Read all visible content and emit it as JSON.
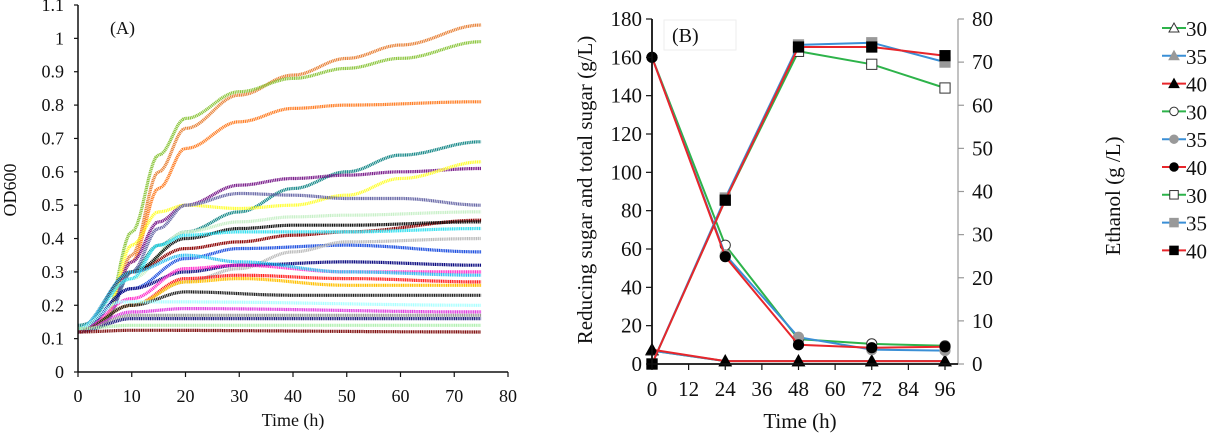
{
  "chart_data": [
    {
      "panel_label": "(A)",
      "type": "line",
      "xlabel": "Time (h)",
      "ylabel": "OD600",
      "xlim": [
        0,
        80
      ],
      "ylim": [
        0,
        1.1
      ],
      "xticks": [
        "0",
        "10",
        "20",
        "30",
        "40",
        "50",
        "60",
        "70",
        "80"
      ],
      "yticks": [
        "0",
        "0.1",
        "0.2",
        "0.3",
        "0.4",
        "0.5",
        "0.6",
        "0.7",
        "0.8",
        "0.9",
        "1",
        "1.1"
      ],
      "grid": false,
      "series": [
        {
          "color": "#e8843c",
          "points": [
            [
              0,
              0.13
            ],
            [
              5,
              0.15
            ],
            [
              10,
              0.35
            ],
            [
              15,
              0.6
            ],
            [
              20,
              0.73
            ],
            [
              30,
              0.83
            ],
            [
              40,
              0.89
            ],
            [
              50,
              0.94
            ],
            [
              60,
              0.98
            ],
            [
              75,
              1.04
            ]
          ]
        },
        {
          "color": "#8dc63f",
          "points": [
            [
              0,
              0.13
            ],
            [
              5,
              0.16
            ],
            [
              10,
              0.42
            ],
            [
              15,
              0.65
            ],
            [
              20,
              0.76
            ],
            [
              30,
              0.84
            ],
            [
              40,
              0.88
            ],
            [
              50,
              0.91
            ],
            [
              60,
              0.94
            ],
            [
              75,
              0.99
            ]
          ]
        },
        {
          "color": "#ff7f27",
          "points": [
            [
              0,
              0.13
            ],
            [
              5,
              0.15
            ],
            [
              10,
              0.33
            ],
            [
              15,
              0.55
            ],
            [
              20,
              0.67
            ],
            [
              30,
              0.75
            ],
            [
              40,
              0.79
            ],
            [
              50,
              0.8
            ],
            [
              75,
              0.81
            ]
          ]
        },
        {
          "color": "#1a8a8a",
          "points": [
            [
              0,
              0.14
            ],
            [
              5,
              0.16
            ],
            [
              10,
              0.3
            ],
            [
              15,
              0.38
            ],
            [
              20,
              0.42
            ],
            [
              30,
              0.48
            ],
            [
              40,
              0.55
            ],
            [
              50,
              0.6
            ],
            [
              60,
              0.65
            ],
            [
              75,
              0.69
            ]
          ]
        },
        {
          "color": "#7b1f8c",
          "points": [
            [
              0,
              0.13
            ],
            [
              5,
              0.15
            ],
            [
              10,
              0.33
            ],
            [
              15,
              0.45
            ],
            [
              20,
              0.5
            ],
            [
              30,
              0.56
            ],
            [
              40,
              0.58
            ],
            [
              50,
              0.59
            ],
            [
              60,
              0.6
            ],
            [
              75,
              0.61
            ]
          ]
        },
        {
          "color": "#ffff33",
          "points": [
            [
              0,
              0.13
            ],
            [
              5,
              0.16
            ],
            [
              10,
              0.38
            ],
            [
              15,
              0.48
            ],
            [
              20,
              0.5
            ],
            [
              30,
              0.49
            ],
            [
              40,
              0.5
            ],
            [
              50,
              0.53
            ],
            [
              60,
              0.58
            ],
            [
              75,
              0.63
            ]
          ]
        },
        {
          "color": "#6a6aa8",
          "points": [
            [
              0,
              0.13
            ],
            [
              5,
              0.15
            ],
            [
              10,
              0.3
            ],
            [
              15,
              0.43
            ],
            [
              20,
              0.5
            ],
            [
              30,
              0.535
            ],
            [
              40,
              0.53
            ],
            [
              50,
              0.52
            ],
            [
              60,
              0.52
            ],
            [
              75,
              0.5
            ]
          ]
        },
        {
          "color": "#c8f0c8",
          "points": [
            [
              0,
              0.13
            ],
            [
              10,
              0.28
            ],
            [
              20,
              0.42
            ],
            [
              30,
              0.45
            ],
            [
              40,
              0.465
            ],
            [
              50,
              0.47
            ],
            [
              75,
              0.48
            ]
          ]
        },
        {
          "color": "#8b0000",
          "points": [
            [
              0,
              0.12
            ],
            [
              10,
              0.3
            ],
            [
              20,
              0.37
            ],
            [
              30,
              0.39
            ],
            [
              40,
              0.41
            ],
            [
              50,
              0.42
            ],
            [
              75,
              0.455
            ]
          ]
        },
        {
          "color": "#111111",
          "points": [
            [
              0,
              0.13
            ],
            [
              10,
              0.3
            ],
            [
              20,
              0.4
            ],
            [
              30,
              0.43
            ],
            [
              40,
              0.44
            ],
            [
              50,
              0.44
            ],
            [
              75,
              0.45
            ]
          ]
        },
        {
          "color": "#33e0f0",
          "points": [
            [
              0,
              0.13
            ],
            [
              10,
              0.28
            ],
            [
              15,
              0.38
            ],
            [
              20,
              0.41
            ],
            [
              30,
              0.42
            ],
            [
              50,
              0.42
            ],
            [
              75,
              0.43
            ]
          ]
        },
        {
          "color": "#1e50e0",
          "points": [
            [
              0,
              0.12
            ],
            [
              10,
              0.25
            ],
            [
              20,
              0.34
            ],
            [
              30,
              0.37
            ],
            [
              50,
              0.38
            ],
            [
              75,
              0.36
            ]
          ]
        },
        {
          "color": "#bbbbbb",
          "points": [
            [
              0,
              0.13
            ],
            [
              10,
              0.2
            ],
            [
              20,
              0.27
            ],
            [
              30,
              0.31
            ],
            [
              40,
              0.36
            ],
            [
              50,
              0.39
            ],
            [
              75,
              0.4
            ]
          ]
        },
        {
          "color": "#0b0b80",
          "points": [
            [
              0,
              0.12
            ],
            [
              10,
              0.25
            ],
            [
              20,
              0.3
            ],
            [
              30,
              0.32
            ],
            [
              50,
              0.33
            ],
            [
              75,
              0.32
            ]
          ]
        },
        {
          "color": "#ff33cc",
          "points": [
            [
              0,
              0.12
            ],
            [
              10,
              0.22
            ],
            [
              20,
              0.31
            ],
            [
              30,
              0.32
            ],
            [
              50,
              0.3
            ],
            [
              75,
              0.3
            ]
          ]
        },
        {
          "color": "#ff2020",
          "points": [
            [
              0,
              0.12
            ],
            [
              10,
              0.2
            ],
            [
              20,
              0.28
            ],
            [
              30,
              0.29
            ],
            [
              50,
              0.28
            ],
            [
              75,
              0.27
            ]
          ]
        },
        {
          "color": "#ffc000",
          "points": [
            [
              0,
              0.12
            ],
            [
              10,
              0.2
            ],
            [
              20,
              0.27
            ],
            [
              30,
              0.28
            ],
            [
              50,
              0.26
            ],
            [
              75,
              0.26
            ]
          ]
        },
        {
          "color": "#33c0f0",
          "points": [
            [
              0,
              0.13
            ],
            [
              10,
              0.3
            ],
            [
              20,
              0.35
            ],
            [
              30,
              0.33
            ],
            [
              50,
              0.3
            ],
            [
              75,
              0.29
            ]
          ]
        },
        {
          "color": "#222222",
          "points": [
            [
              0,
              0.12
            ],
            [
              10,
              0.2
            ],
            [
              20,
              0.24
            ],
            [
              40,
              0.23
            ],
            [
              75,
              0.23
            ]
          ]
        },
        {
          "color": "#aaffff",
          "points": [
            [
              0,
              0.13
            ],
            [
              8,
              0.21
            ],
            [
              20,
              0.21
            ],
            [
              75,
              0.2
            ]
          ]
        },
        {
          "color": "#e040e0",
          "points": [
            [
              0,
              0.12
            ],
            [
              10,
              0.18
            ],
            [
              20,
              0.19
            ],
            [
              75,
              0.18
            ]
          ]
        },
        {
          "color": "#999999",
          "points": [
            [
              0,
              0.12
            ],
            [
              10,
              0.17
            ],
            [
              75,
              0.17
            ]
          ]
        },
        {
          "color": "#202080",
          "points": [
            [
              0,
              0.12
            ],
            [
              10,
              0.16
            ],
            [
              75,
              0.16
            ]
          ]
        },
        {
          "color": "#b0f0b0",
          "points": [
            [
              0,
              0.13
            ],
            [
              10,
              0.14
            ],
            [
              75,
              0.14
            ]
          ]
        },
        {
          "color": "#801010",
          "points": [
            [
              0,
              0.12
            ],
            [
              10,
              0.125
            ],
            [
              75,
              0.12
            ]
          ]
        }
      ]
    },
    {
      "panel_label": "(B)",
      "type": "line",
      "xlabel": "Time (h)",
      "ylabel": "Reducing sugar and total sugar (g/L)",
      "y2label": "Ethanol (g /L)",
      "xlim": [
        0,
        96
      ],
      "ylim": [
        0,
        180
      ],
      "y2lim": [
        0,
        80
      ],
      "xticks": [
        "0",
        "12",
        "24",
        "36",
        "48",
        "60",
        "72",
        "84",
        "96"
      ],
      "yticks": [
        "0",
        "20",
        "40",
        "60",
        "80",
        "100",
        "120",
        "140",
        "160",
        "180"
      ],
      "y2ticks": [
        "0",
        "10",
        "20",
        "30",
        "40",
        "50",
        "60",
        "70",
        "80"
      ],
      "grid": false,
      "legend_placement": "right",
      "x": [
        0,
        24,
        48,
        72,
        96
      ],
      "series": [
        {
          "name": "30",
          "axis": "left",
          "marker": "triangle-open",
          "line": "#2db34a",
          "marker_color": "#2db34a",
          "values": [
            7,
            1.5,
            1.5,
            1.5,
            1.5
          ]
        },
        {
          "name": "35",
          "axis": "left",
          "marker": "triangle-filled",
          "line": "#3a8fd6",
          "marker_color": "#999999",
          "values": [
            7,
            1.5,
            1.5,
            1.5,
            1.5
          ]
        },
        {
          "name": "40",
          "axis": "left",
          "marker": "triangle-filled",
          "line": "#e8262b",
          "marker_color": "#000000",
          "values": [
            7.5,
            1.5,
            1.5,
            1.5,
            1.5
          ]
        },
        {
          "name": "30",
          "axis": "left",
          "marker": "circle-open",
          "line": "#2db34a",
          "marker_color": "#2db34a",
          "values": [
            160,
            62,
            13,
            10.5,
            9.5
          ]
        },
        {
          "name": "35",
          "axis": "left",
          "marker": "circle-filled",
          "line": "#3a8fd6",
          "marker_color": "#999999",
          "values": [
            160,
            57,
            14,
            7.5,
            7
          ]
        },
        {
          "name": "40",
          "axis": "left",
          "marker": "circle-filled",
          "line": "#e8262b",
          "marker_color": "#000000",
          "values": [
            160,
            56,
            10,
            8.5,
            9
          ]
        },
        {
          "name": "30",
          "axis": "right",
          "marker": "square-open",
          "line": "#2db34a",
          "marker_color": "#2db34a",
          "values": [
            0,
            38,
            72.5,
            69.5,
            64
          ]
        },
        {
          "name": "35",
          "axis": "right",
          "marker": "square-filled",
          "line": "#3a8fd6",
          "marker_color": "#999999",
          "values": [
            0,
            38.5,
            74,
            74.5,
            70
          ]
        },
        {
          "name": "40",
          "axis": "right",
          "marker": "square-filled",
          "line": "#e8262b",
          "marker_color": "#000000",
          "values": [
            0,
            38,
            73.5,
            73.5,
            71.5
          ]
        }
      ]
    }
  ]
}
